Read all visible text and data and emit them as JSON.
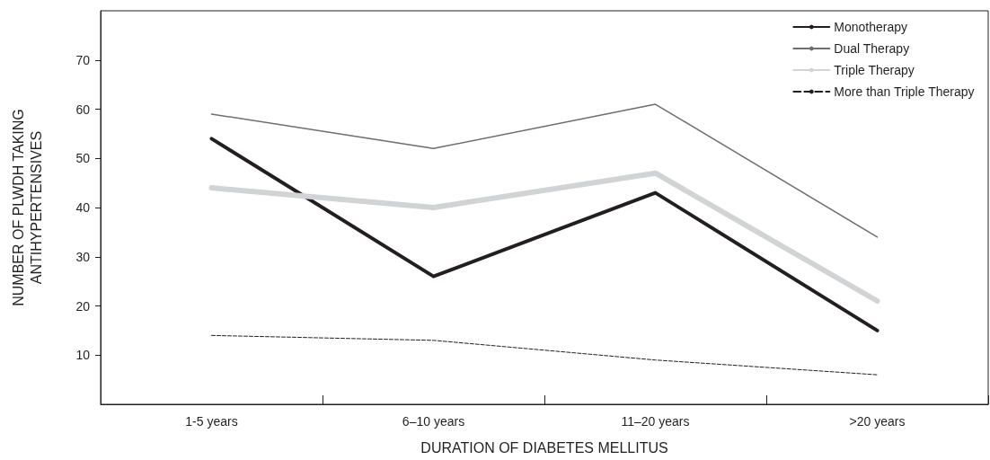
{
  "chart_data": {
    "type": "line",
    "xlabel": "DURATION OF DIABETES MELLITUS",
    "ylabel": "NUMBER OF PLWDH TAKING ANTIHYPERTENSIVES",
    "categories": [
      "1-5 years",
      "6–10 years",
      "11–20 years",
      ">20 years"
    ],
    "series": [
      {
        "name": "Monotherapy",
        "color": "#231f20",
        "values": [
          54,
          26,
          43,
          15
        ],
        "line_style": "solid"
      },
      {
        "name": "Dual Therapy",
        "color": "#6d6e71",
        "values": [
          59,
          52,
          61,
          34
        ],
        "line_style": "solid"
      },
      {
        "name": "Triple Therapy",
        "color": "#d1d3d4",
        "values": [
          44,
          40,
          47,
          21
        ],
        "line_style": "solid"
      },
      {
        "name": "More than Triple Therapy",
        "color": "#231f20",
        "values": [
          14,
          13,
          9,
          6
        ],
        "line_style": "dashed"
      }
    ],
    "ylim": [
      0,
      80
    ],
    "yticks": [
      10,
      20,
      30,
      40,
      50,
      60,
      70
    ],
    "grid": false,
    "legend": "top right",
    "marker": "none"
  }
}
